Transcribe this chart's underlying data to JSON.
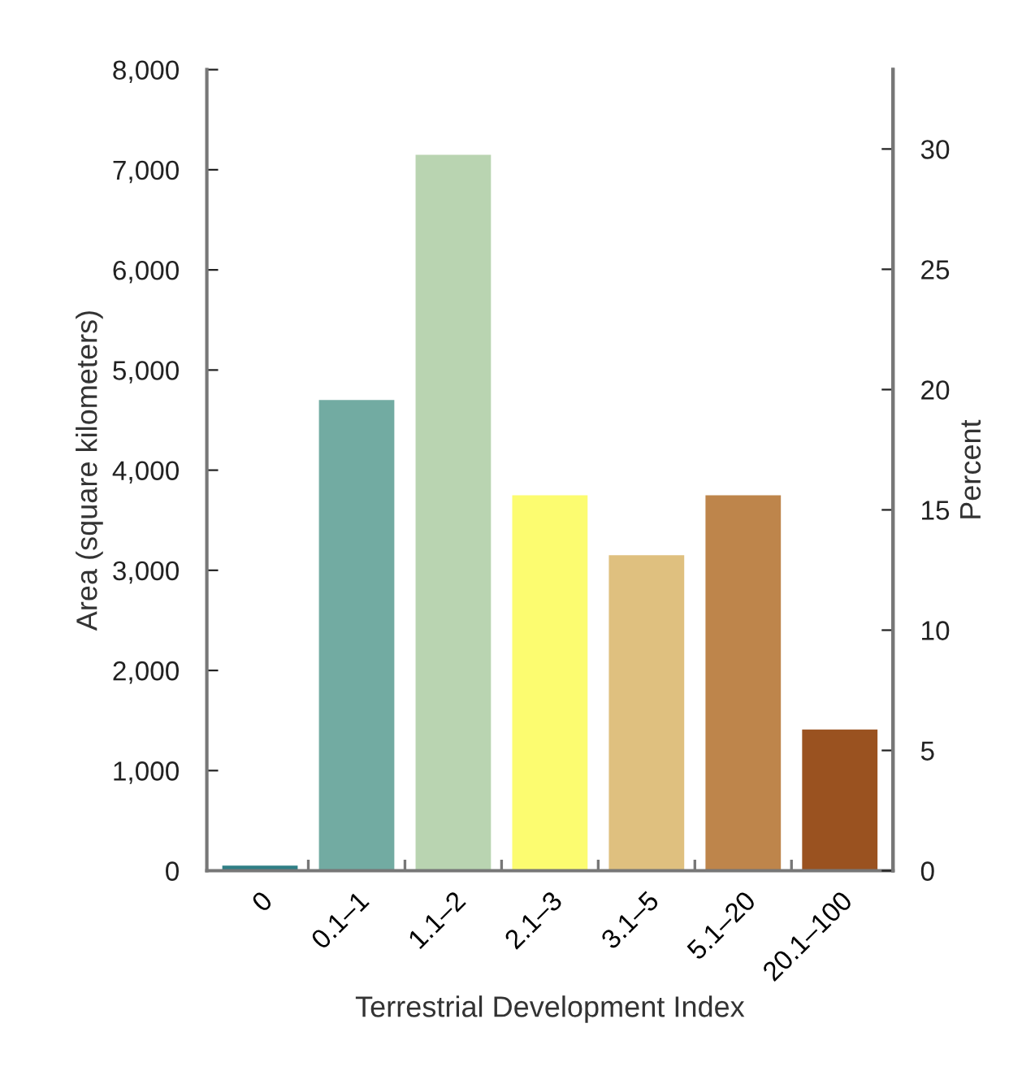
{
  "chart_data": {
    "type": "bar",
    "xlabel": "Terrestrial Development Index",
    "ylabel": "Area (square kilometers)",
    "y2label": "Percent",
    "categories": [
      "0",
      "0.1–1",
      "1.1–2",
      "2.1–3",
      "3.1–5",
      "5.1–20",
      "20.1–100"
    ],
    "values": [
      50,
      4700,
      7150,
      3750,
      3150,
      3750,
      1410
    ],
    "colors": [
      "#2f7f86",
      "#72aba2",
      "#b9d4b1",
      "#fcfc70",
      "#dfc07f",
      "#be854b",
      "#9a5220"
    ],
    "ylim": [
      0,
      8000
    ],
    "yticks": [
      {
        "value": 0,
        "label": "0"
      },
      {
        "value": 1000,
        "label": "1,000"
      },
      {
        "value": 2000,
        "label": "2,000"
      },
      {
        "value": 3000,
        "label": "3,000"
      },
      {
        "value": 4000,
        "label": "4,000"
      },
      {
        "value": 5000,
        "label": "5,000"
      },
      {
        "value": 6000,
        "label": "6,000"
      },
      {
        "value": 7000,
        "label": "7,000"
      },
      {
        "value": 8000,
        "label": "8,000"
      }
    ],
    "y2lim": [
      0,
      33.3
    ],
    "y2ticks": [
      0,
      5,
      10,
      15,
      20,
      25,
      30
    ],
    "grid": false,
    "legend": false
  }
}
